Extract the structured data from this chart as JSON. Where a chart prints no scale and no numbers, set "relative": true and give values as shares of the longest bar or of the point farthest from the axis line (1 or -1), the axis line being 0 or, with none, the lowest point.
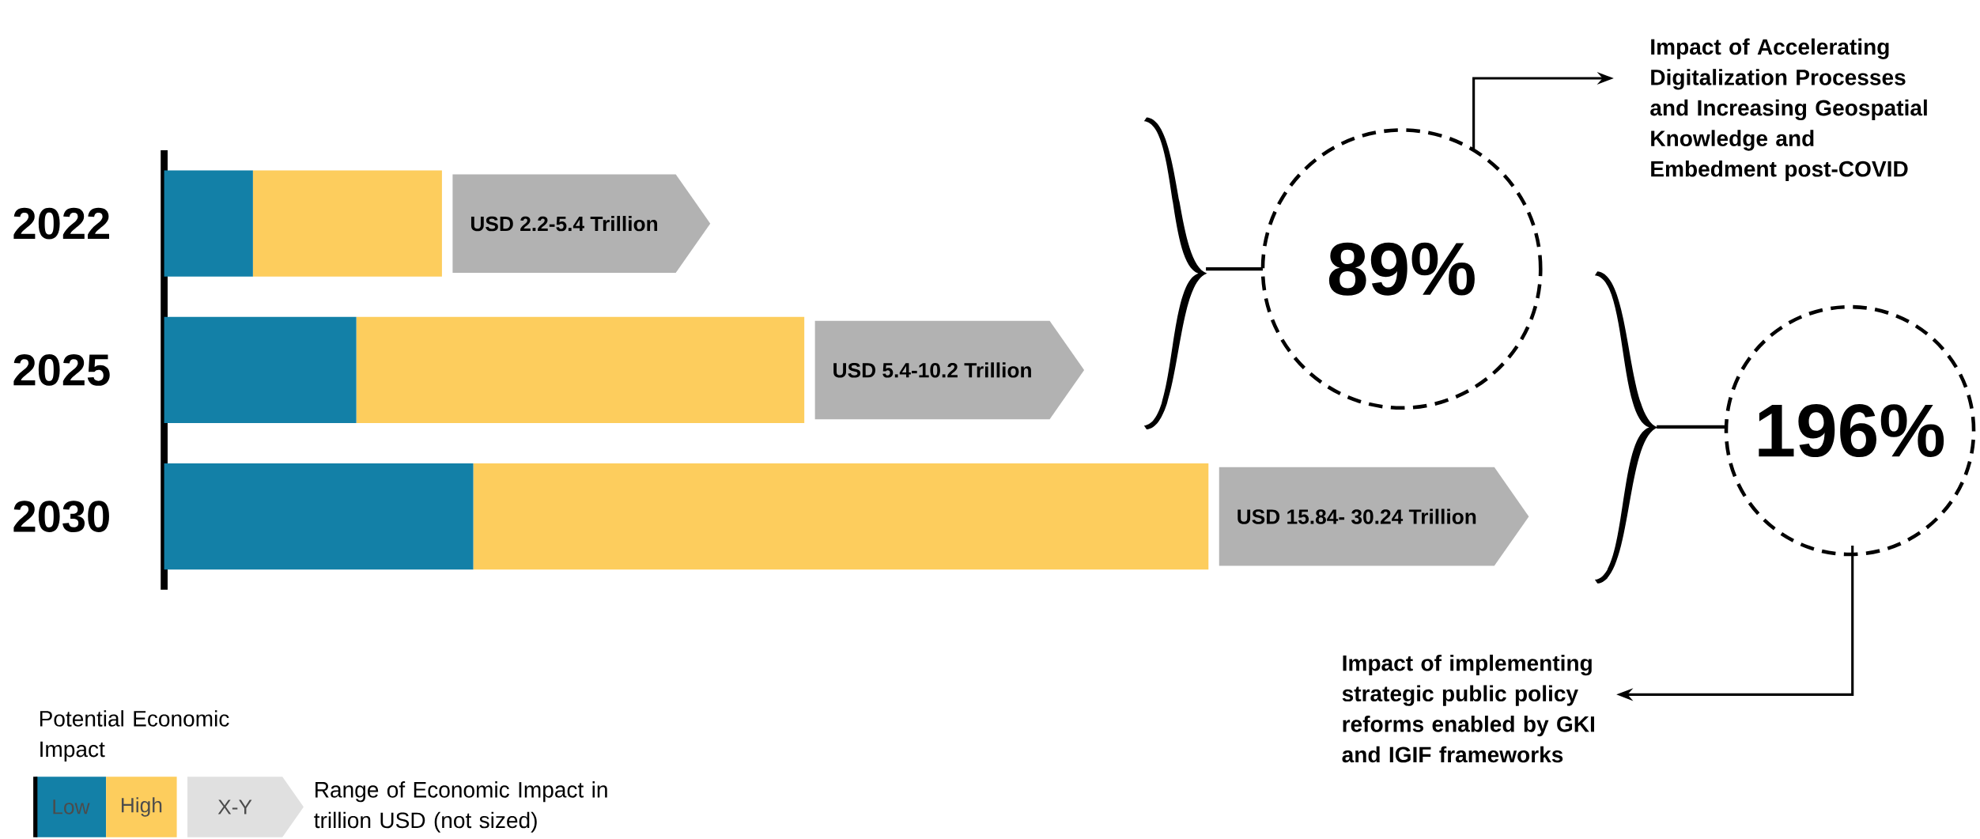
{
  "chart_data": {
    "type": "bar",
    "orientation": "horizontal",
    "stacked": true,
    "relative": true,
    "categories": [
      "2022",
      "2025",
      "2030"
    ],
    "series": [
      {
        "name": "Low",
        "color": "#1380a7",
        "values": [
          0.085,
          0.184,
          0.296
        ]
      },
      {
        "name": "High",
        "color": "#fdcd5d",
        "values": [
          0.181,
          0.429,
          0.704
        ]
      }
    ],
    "legend": "bottom left",
    "legend_title": "Potential Economic Impact",
    "annotations": [
      "USD 2.2-5.4 Trillion",
      "USD 5.4-10.2 Trillion",
      "USD 15.84- 30.24 Trillion",
      "89%",
      "Impact of Accelerating Digitalization Processes and Increasing Geospatial Knowledge and Embedment post-COVID",
      "196%",
      "Impact of implementing strategic public policy reforms enabled by GKI and IGIF frameworks",
      "X-Y",
      "Range of Economic Impact in trillion USD (not sized)"
    ]
  }
}
